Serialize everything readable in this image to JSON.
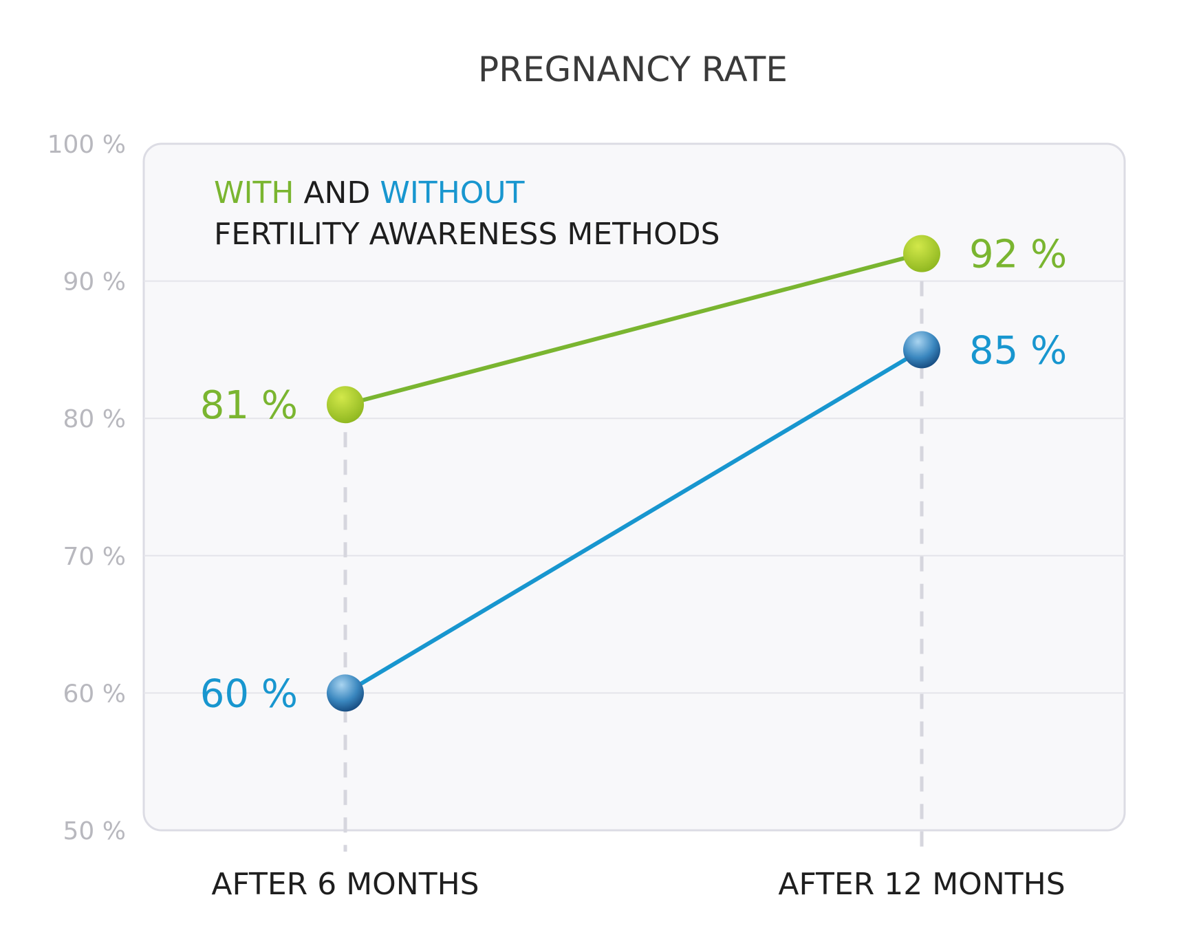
{
  "chart_data": {
    "type": "line",
    "title": "PREGNANCY RATE",
    "legend": {
      "with": "WITH",
      "and": " AND ",
      "without": "WITHOUT",
      "line2": "FERTILITY AWARENESS METHODS",
      "placement": "top-left"
    },
    "categories": [
      "AFTER 6 MONTHS",
      "AFTER 12 MONTHS"
    ],
    "series": [
      {
        "key": "with",
        "values": [
          81,
          92
        ],
        "labels": [
          "81 %",
          "92 %"
        ],
        "color": "#7ab530"
      },
      {
        "key": "without",
        "values": [
          60,
          85
        ],
        "labels": [
          "60 %",
          "85 %"
        ],
        "color": "#1896cf"
      }
    ],
    "ylim": [
      50,
      100
    ],
    "yticks": [
      50,
      60,
      70,
      80,
      90,
      100
    ],
    "ytick_labels": [
      "50 %",
      "60 %",
      "70 %",
      "80 %",
      "90 %",
      "100 %"
    ],
    "grid": true
  },
  "colors": {
    "with": "#7ab530",
    "without": "#1896cf",
    "legend_text": "#1e1e1e",
    "plot_bg": "#f8f8fa",
    "plot_border": "#dcdce4"
  }
}
